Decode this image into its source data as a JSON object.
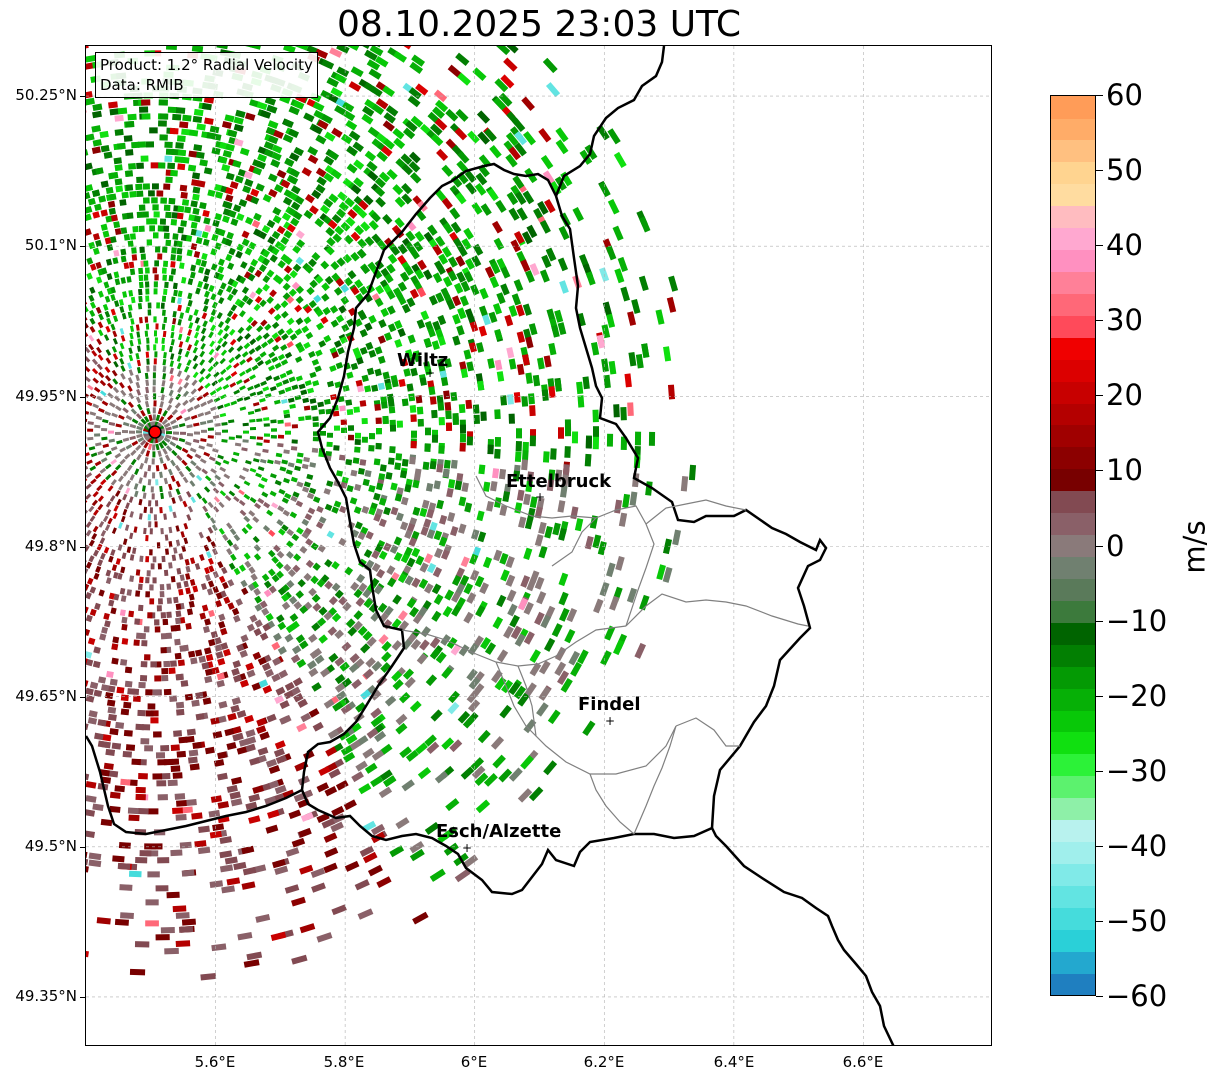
{
  "title": "08.10.2025 23:03 UTC",
  "info": {
    "product": "Product: 1.2° Radial Velocity",
    "source": "Data: RMIB"
  },
  "lat_labels": [
    "50.25°N",
    "50.1°N",
    "49.95°N",
    "49.8°N",
    "49.65°N",
    "49.5°N",
    "49.35°N"
  ],
  "lon_labels": [
    "5.6°E",
    "5.8°E",
    "6°E",
    "6.2°E",
    "6.4°E",
    "6.6°E"
  ],
  "extent": {
    "lon_min": 5.4,
    "lon_max": 6.8,
    "lat_min": 49.3,
    "lat_max": 50.3
  },
  "radar": {
    "lon": 5.505,
    "lat": 49.914
  },
  "cities": [
    {
      "name": "Wiltz",
      "lon": 5.93,
      "lat": 49.966
    },
    {
      "name": "Ettelbruck",
      "lon": 6.1,
      "lat": 49.849
    },
    {
      "name": "Findel",
      "lon": 6.21,
      "lat": 49.626
    },
    {
      "name": "Esch/Alzette",
      "lon": 5.98,
      "lat": 49.5
    }
  ],
  "colorbar": {
    "unit": "m/s",
    "ticks": [
      "60",
      "50",
      "40",
      "30",
      "20",
      "10",
      "0",
      "−10",
      "−20",
      "−30",
      "−40",
      "−50",
      "−60"
    ],
    "tick_values": [
      60,
      50,
      40,
      30,
      20,
      10,
      0,
      -10,
      -20,
      -30,
      -40,
      -50,
      -60
    ],
    "vmin": -60,
    "vmax": 60
  },
  "colors": {
    "velocity_colormap": [
      "#1f7fc0",
      "#23a8cf",
      "#2ad0d8",
      "#45dcdc",
      "#62e4e2",
      "#80eae8",
      "#a0efec",
      "#b8f2ee",
      "#8ef0a8",
      "#5cf26e",
      "#2cf238",
      "#10e010",
      "#08c808",
      "#06b006",
      "#049a04",
      "#027f02",
      "#006400",
      "#3c7a3c",
      "#5a7a5a",
      "#708070",
      "#8a7a7a",
      "#8a6068",
      "#824a52",
      "#780000",
      "#8c0000",
      "#a00000",
      "#b40000",
      "#c80000",
      "#dc0000",
      "#f00000",
      "#ff4a5a",
      "#ff6878",
      "#ff8098",
      "#ff90c0",
      "#ffa8d0",
      "#ffbcc0",
      "#ffdca0",
      "#ffd490",
      "#ffc080",
      "#ffac68",
      "#ff9c58"
    ],
    "border_country": "#000000",
    "border_canton": "#808080",
    "radar_marker": "#ff0000"
  }
}
